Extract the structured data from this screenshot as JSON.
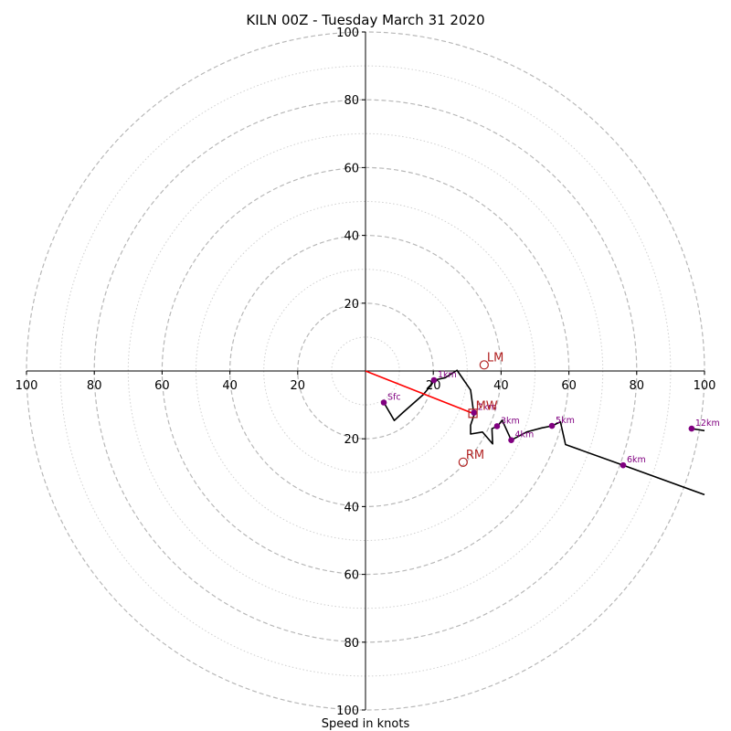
{
  "chart_data": {
    "type": "hodograph",
    "title": "KILN 00Z - Tuesday March 31 2020",
    "xlabel": "Speed in knots",
    "ylabel": "",
    "xlim": [
      -100,
      100
    ],
    "ylim": [
      -100,
      100
    ],
    "ring_major": [
      20,
      40,
      60,
      80,
      100
    ],
    "ring_minor": [
      10,
      30,
      50,
      70,
      90
    ],
    "x_ticks": [
      {
        "value": -100,
        "label": "100"
      },
      {
        "value": -80,
        "label": "80"
      },
      {
        "value": -60,
        "label": "60"
      },
      {
        "value": -40,
        "label": "40"
      },
      {
        "value": -20,
        "label": "20"
      },
      {
        "value": 20,
        "label": "20"
      },
      {
        "value": 40,
        "label": "40"
      },
      {
        "value": 60,
        "label": "60"
      },
      {
        "value": 80,
        "label": "80"
      },
      {
        "value": 100,
        "label": "100"
      }
    ],
    "y_ticks": [
      {
        "value": 100,
        "label": "100"
      },
      {
        "value": 80,
        "label": "80"
      },
      {
        "value": 60,
        "label": "60"
      },
      {
        "value": 40,
        "label": "40"
      },
      {
        "value": 20,
        "label": "20"
      },
      {
        "value": -20,
        "label": "20"
      },
      {
        "value": -40,
        "label": "40"
      },
      {
        "value": -60,
        "label": "60"
      },
      {
        "value": -80,
        "label": "80"
      },
      {
        "value": -100,
        "label": "100"
      }
    ],
    "hodograph_trace": {
      "color": "#000000",
      "points": [
        [
          5.4,
          -9.3
        ],
        [
          8.5,
          -14.6
        ],
        [
          11.0,
          -12.3
        ],
        [
          17.0,
          -7.0
        ],
        [
          19.5,
          -4.0
        ],
        [
          20.2,
          -2.7
        ],
        [
          23.5,
          -2.0
        ],
        [
          27.0,
          0.2
        ],
        [
          31.0,
          -5.6
        ],
        [
          32.0,
          -13.0
        ],
        [
          31.0,
          -16.0
        ],
        [
          31.0,
          -18.6
        ],
        [
          34.5,
          -18.0
        ],
        [
          37.5,
          -21.5
        ],
        [
          37.3,
          -17.0
        ],
        [
          39.0,
          -16.3
        ],
        [
          40.3,
          -14.5
        ],
        [
          43.0,
          -20.4
        ],
        [
          47.5,
          -18.0
        ],
        [
          52.0,
          -16.8
        ],
        [
          55.0,
          -16.2
        ],
        [
          57.5,
          -15.0
        ],
        [
          59.0,
          -21.7
        ],
        [
          76.0,
          -27.8
        ],
        [
          100,
          -36.5
        ]
      ]
    },
    "height_markers": [
      {
        "label": "Sfc",
        "x": 5.4,
        "y": -9.3
      },
      {
        "label": "1km",
        "x": 20.2,
        "y": -2.7
      },
      {
        "label": "2km",
        "x": 32.0,
        "y": -12.3
      },
      {
        "label": "3km",
        "x": 38.8,
        "y": -16.3
      },
      {
        "label": "4km",
        "x": 43.0,
        "y": -20.4
      },
      {
        "label": "5km",
        "x": 55.0,
        "y": -16.2
      },
      {
        "label": "6km",
        "x": 76.0,
        "y": -27.8
      },
      {
        "label": "12km",
        "x": 96.2,
        "y": -17.0
      }
    ],
    "upper_segment": [
      [
        96.2,
        -17.0
      ],
      [
        100,
        -17.6
      ]
    ],
    "storm_motion": [
      {
        "label": "LM",
        "x": 35.0,
        "y": 1.8
      },
      {
        "label": "MW",
        "x": 31.7,
        "y": -12.5
      },
      {
        "label": "RM",
        "x": 28.8,
        "y": -26.9
      }
    ],
    "mean_wind_vector": {
      "color": "#ff0000",
      "from": [
        0,
        0
      ],
      "to": [
        31.7,
        -12.5
      ]
    },
    "colors": {
      "trace": "#000000",
      "height_marker": "#800080",
      "storm_motion": "#b22222",
      "vector": "#ff0000",
      "ring_major": "#b8b8b8",
      "ring_minor": "#d0d0d0"
    }
  }
}
